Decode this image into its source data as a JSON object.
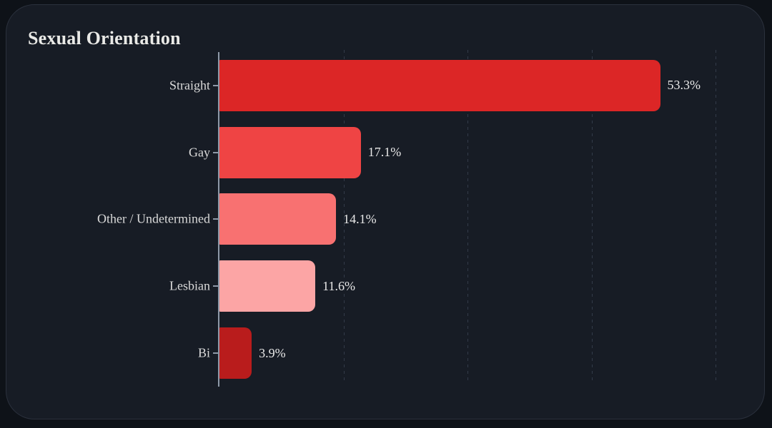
{
  "card": {
    "title": "Sexual Orientation"
  },
  "chart_data": {
    "type": "bar",
    "orientation": "horizontal",
    "title": "Sexual Orientation",
    "categories": [
      "Straight",
      "Gay",
      "Other / Undetermined",
      "Lesbian",
      "Bi"
    ],
    "values": [
      53.3,
      17.1,
      14.1,
      11.6,
      3.9
    ],
    "value_labels": [
      "53.3%",
      "17.1%",
      "14.1%",
      "11.6%",
      "3.9%"
    ],
    "bar_colors": [
      "#dc2626",
      "#ef4444",
      "#f87171",
      "#fca5a5",
      "#b91c1c"
    ],
    "xlabel": "",
    "ylabel": "",
    "xlim": [
      0,
      60
    ],
    "gridline_values": [
      15,
      30,
      45,
      60
    ],
    "grid": "dashed-vertical",
    "legend": "none"
  },
  "theme": {
    "page_bg": "#0e1218",
    "card_bg": "#171c25",
    "card_border": "#2b313d",
    "axis_color": "#8e99a8",
    "grid_color": "#333b49",
    "title_color": "#e9e9e6",
    "category_label_color": "#dadada",
    "value_label_color": "#e8e8e8"
  }
}
